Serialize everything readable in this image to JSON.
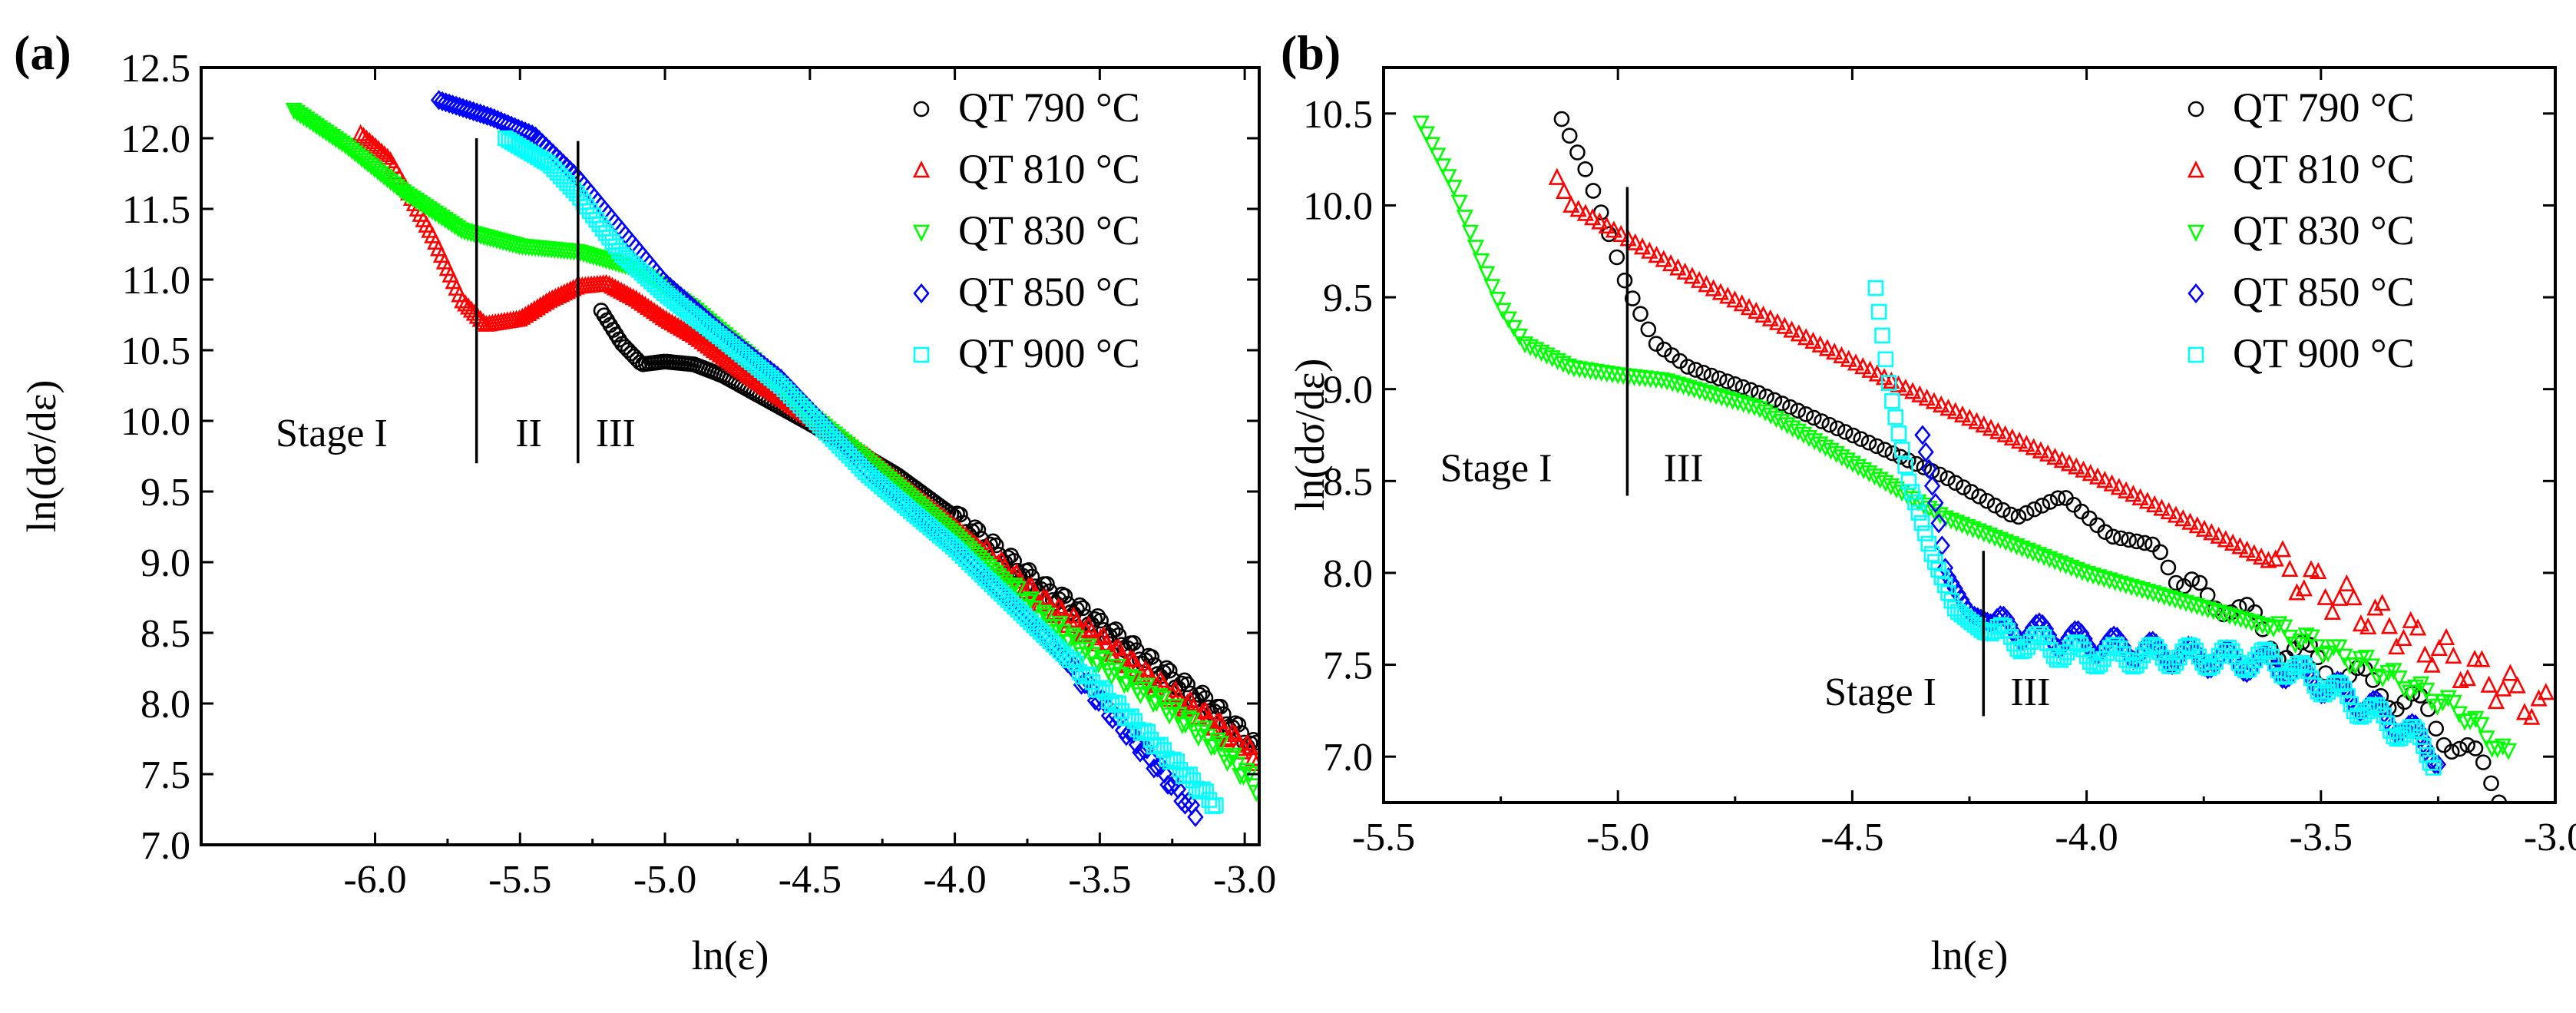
{
  "colors": {
    "QT790": "#000000",
    "QT810": "#ff0000",
    "QT830": "#00ff00",
    "QT850": "#0000ff",
    "QT900": "#00ffff"
  },
  "chart_data": [
    {
      "panel": "(a)",
      "type": "scatter",
      "title": "",
      "xlabel": "ln(ε)",
      "ylabel": "ln(dσ/dε)",
      "xlim": [
        -6.6,
        -2.95
      ],
      "ylim": [
        7.0,
        12.5
      ],
      "xticks": [
        -6.0,
        -5.5,
        -5.0,
        -4.5,
        -4.0,
        -3.5,
        -3.0
      ],
      "xtick_labels": [
        "-6.0",
        "-5.5",
        "-5.0",
        "-4.5",
        "-4.0",
        "-3.5",
        "-3.0"
      ],
      "yticks": [
        7.0,
        7.5,
        8.0,
        8.5,
        9.0,
        9.5,
        10.0,
        10.5,
        11.0,
        11.5,
        12.0,
        12.5
      ],
      "ytick_labels": [
        "7.0",
        "7.5",
        "8.0",
        "8.5",
        "9.0",
        "9.5",
        "10.0",
        "10.5",
        "11.0",
        "11.5",
        "12.0",
        "12.5"
      ],
      "legend": [
        {
          "label": "QT 790 °C",
          "marker": "circle",
          "color_key": "QT790"
        },
        {
          "label": "QT 810 °C",
          "marker": "triangle-up",
          "color_key": "QT810"
        },
        {
          "label": "QT 830 °C",
          "marker": "triangle-down",
          "color_key": "QT830"
        },
        {
          "label": "QT 850 °C",
          "marker": "diamond",
          "color_key": "QT850"
        },
        {
          "label": "QT 900 °C",
          "marker": "square",
          "color_key": "QT900"
        }
      ],
      "legend_position": "top-right",
      "series": [
        {
          "name": "QT 790 °C",
          "color_key": "QT790",
          "marker": "circle",
          "n": 220,
          "points": [
            [
              -5.22,
              10.78
            ],
            [
              -5.15,
              10.55
            ],
            [
              -5.08,
              10.4
            ],
            [
              -5.0,
              10.42
            ],
            [
              -4.9,
              10.4
            ],
            [
              -4.8,
              10.32
            ],
            [
              -4.5,
              9.98
            ],
            [
              -4.2,
              9.62
            ],
            [
              -4.0,
              9.32
            ],
            [
              -3.7,
              8.82
            ],
            [
              -3.5,
              8.56
            ],
            [
              -3.3,
              8.25
            ],
            [
              -3.1,
              7.96
            ],
            [
              -2.96,
              7.68
            ]
          ],
          "osc": {
            "start": -4.0,
            "amp": 0.05,
            "period": 0.06
          }
        },
        {
          "name": "QT 810 °C",
          "color_key": "QT810",
          "marker": "triangle-up",
          "n": 300,
          "points": [
            [
              -6.05,
              12.03
            ],
            [
              -5.95,
              11.85
            ],
            [
              -5.8,
              11.3
            ],
            [
              -5.7,
              10.85
            ],
            [
              -5.62,
              10.68
            ],
            [
              -5.5,
              10.72
            ],
            [
              -5.4,
              10.85
            ],
            [
              -5.3,
              10.95
            ],
            [
              -5.2,
              10.97
            ],
            [
              -5.1,
              10.86
            ],
            [
              -5.0,
              10.72
            ],
            [
              -4.9,
              10.6
            ],
            [
              -4.7,
              10.3
            ],
            [
              -4.5,
              10.02
            ],
            [
              -4.3,
              9.75
            ],
            [
              -4.0,
              9.25
            ],
            [
              -3.7,
              8.72
            ],
            [
              -3.5,
              8.45
            ],
            [
              -3.3,
              8.13
            ],
            [
              -3.1,
              7.85
            ],
            [
              -2.96,
              7.62
            ]
          ],
          "osc": {
            "start": -3.9,
            "amp": 0.05,
            "period": 0.05
          }
        },
        {
          "name": "QT 830 °C",
          "color_key": "QT830",
          "marker": "triangle-down",
          "n": 300,
          "points": [
            [
              -6.28,
              12.2
            ],
            [
              -6.1,
              11.95
            ],
            [
              -5.9,
              11.62
            ],
            [
              -5.7,
              11.35
            ],
            [
              -5.5,
              11.24
            ],
            [
              -5.3,
              11.2
            ],
            [
              -5.1,
              11.08
            ],
            [
              -4.9,
              10.8
            ],
            [
              -4.7,
              10.45
            ],
            [
              -4.5,
              10.05
            ],
            [
              -4.3,
              9.72
            ],
            [
              -4.0,
              9.2
            ],
            [
              -3.7,
              8.62
            ],
            [
              -3.5,
              8.3
            ],
            [
              -3.3,
              8.03
            ],
            [
              -3.1,
              7.72
            ],
            [
              -2.96,
              7.42
            ]
          ],
          "osc": {
            "start": -3.8,
            "amp": 0.05,
            "period": 0.05
          }
        },
        {
          "name": "QT 850 °C",
          "color_key": "QT850",
          "marker": "diamond",
          "n": 220,
          "points": [
            [
              -5.78,
              12.27
            ],
            [
              -5.6,
              12.15
            ],
            [
              -5.45,
              12.02
            ],
            [
              -5.3,
              11.72
            ],
            [
              -5.15,
              11.35
            ],
            [
              -5.0,
              10.98
            ],
            [
              -4.8,
              10.62
            ],
            [
              -4.6,
              10.3
            ],
            [
              -4.3,
              9.65
            ],
            [
              -4.0,
              9.1
            ],
            [
              -3.7,
              8.5
            ],
            [
              -3.5,
              8.02
            ],
            [
              -3.3,
              7.55
            ],
            [
              -3.17,
              7.22
            ]
          ],
          "osc": {
            "start": -3.6,
            "amp": 0.04,
            "period": 0.05
          }
        },
        {
          "name": "QT 900 °C",
          "color_key": "QT900",
          "marker": "square",
          "n": 220,
          "points": [
            [
              -5.55,
              12.0
            ],
            [
              -5.4,
              11.82
            ],
            [
              -5.3,
              11.6
            ],
            [
              -5.15,
              11.18
            ],
            [
              -5.0,
              10.9
            ],
            [
              -4.8,
              10.58
            ],
            [
              -4.6,
              10.25
            ],
            [
              -4.3,
              9.62
            ],
            [
              -4.0,
              9.1
            ],
            [
              -3.7,
              8.5
            ],
            [
              -3.5,
              8.1
            ],
            [
              -3.3,
              7.7
            ],
            [
              -3.1,
              7.28
            ]
          ],
          "osc": {
            "start": -3.6,
            "amp": 0.03,
            "period": 0.05
          }
        }
      ],
      "stage_lines": [
        {
          "x": -5.65,
          "y1": 9.7,
          "y2": 12.0
        },
        {
          "x": -5.3,
          "y1": 9.7,
          "y2": 11.98
        }
      ],
      "annotations": [
        {
          "text": "Stage I",
          "x": -6.15,
          "y": 9.82
        },
        {
          "text": "II",
          "x": -5.47,
          "y": 9.82
        },
        {
          "text": "III",
          "x": -5.17,
          "y": 9.82
        }
      ]
    },
    {
      "panel": "(b)",
      "type": "scatter",
      "title": "",
      "xlabel": "ln(ε)",
      "ylabel": "ln(dσ/dε)",
      "xlim": [
        -5.5,
        -3.0
      ],
      "ylim": [
        6.75,
        10.75
      ],
      "xticks": [
        -5.5,
        -5.0,
        -4.5,
        -4.0,
        -3.5,
        -3.0
      ],
      "xtick_labels": [
        "-5.5",
        "-5.0",
        "-4.5",
        "-4.0",
        "-3.5",
        "-3.0"
      ],
      "yticks": [
        7.0,
        7.5,
        8.0,
        8.5,
        9.0,
        9.5,
        10.0,
        10.5
      ],
      "ytick_labels": [
        "7.0",
        "7.5",
        "8.0",
        "8.5",
        "9.0",
        "9.5",
        "10.0",
        "10.5"
      ],
      "legend": [
        {
          "label": "QT 790 °C",
          "marker": "circle",
          "color_key": "QT790"
        },
        {
          "label": "QT 810 °C",
          "marker": "triangle-up",
          "color_key": "QT810"
        },
        {
          "label": "QT 830 °C",
          "marker": "triangle-down",
          "color_key": "QT830"
        },
        {
          "label": "QT 850 °C",
          "marker": "diamond",
          "color_key": "QT850"
        },
        {
          "label": "QT 900 °C",
          "marker": "square",
          "color_key": "QT900"
        }
      ],
      "legend_position": "top-right",
      "series": [
        {
          "name": "QT 790 °C",
          "color_key": "QT790",
          "marker": "circle",
          "n": 120,
          "points": [
            [
              -5.12,
              10.47
            ],
            [
              -5.07,
              10.2
            ],
            [
              -5.02,
              9.85
            ],
            [
              -4.98,
              9.55
            ],
            [
              -4.92,
              9.25
            ],
            [
              -4.85,
              9.12
            ],
            [
              -4.7,
              8.98
            ],
            [
              -4.5,
              8.75
            ],
            [
              -4.3,
              8.52
            ],
            [
              -4.15,
              8.3
            ],
            [
              -4.05,
              8.42
            ],
            [
              -3.95,
              8.2
            ],
            [
              -3.85,
              8.15
            ],
            [
              -3.8,
              7.9
            ],
            [
              -3.7,
              7.85
            ],
            [
              -3.6,
              7.62
            ],
            [
              -3.45,
              7.45
            ],
            [
              -3.3,
              7.28
            ],
            [
              -3.2,
              7.05
            ],
            [
              -3.12,
              6.82
            ]
          ],
          "osc": {
            "start": -3.8,
            "amp": 0.08,
            "period": 0.12
          }
        },
        {
          "name": "QT 810 °C",
          "color_key": "QT810",
          "marker": "triangle-up",
          "n": 140,
          "points": [
            [
              -5.13,
              10.15
            ],
            [
              -5.1,
              10.0
            ],
            [
              -5.0,
              9.85
            ],
            [
              -4.8,
              9.55
            ],
            [
              -4.6,
              9.28
            ],
            [
              -4.4,
              9.02
            ],
            [
              -4.2,
              8.78
            ],
            [
              -4.0,
              8.55
            ],
            [
              -3.8,
              8.3
            ],
            [
              -3.6,
              8.05
            ],
            [
              -3.4,
              7.78
            ],
            [
              -3.2,
              7.5
            ],
            [
              -3.02,
              7.25
            ]
          ],
          "osc": {
            "start": -3.6,
            "amp": 0.1,
            "period": 0.07
          }
        },
        {
          "name": "QT 830 °C",
          "color_key": "QT830",
          "marker": "triangle-down",
          "n": 200,
          "points": [
            [
              -5.42,
              10.45
            ],
            [
              -5.35,
              10.1
            ],
            [
              -5.3,
              9.75
            ],
            [
              -5.25,
              9.45
            ],
            [
              -5.2,
              9.25
            ],
            [
              -5.1,
              9.12
            ],
            [
              -5.0,
              9.08
            ],
            [
              -4.9,
              9.05
            ],
            [
              -4.7,
              8.9
            ],
            [
              -4.5,
              8.6
            ],
            [
              -4.3,
              8.3
            ],
            [
              -4.0,
              8.0
            ],
            [
              -3.8,
              7.85
            ],
            [
              -3.6,
              7.7
            ],
            [
              -3.4,
              7.5
            ],
            [
              -3.2,
              7.25
            ],
            [
              -3.1,
              7.0
            ]
          ],
          "osc": {
            "start": -3.6,
            "amp": 0.04,
            "period": 0.06
          }
        },
        {
          "name": "QT 850 °C",
          "color_key": "QT850",
          "marker": "diamond",
          "n": 160,
          "points": [
            [
              -4.35,
              8.75
            ],
            [
              -4.32,
              8.35
            ],
            [
              -4.3,
              8.0
            ],
            [
              -4.25,
              7.78
            ],
            [
              -4.2,
              7.72
            ],
            [
              -4.0,
              7.62
            ],
            [
              -3.8,
              7.55
            ],
            [
              -3.6,
              7.5
            ],
            [
              -3.5,
              7.4
            ],
            [
              -3.4,
              7.28
            ],
            [
              -3.3,
              7.12
            ],
            [
              -3.25,
              7.0
            ]
          ],
          "osc": {
            "start": -4.2,
            "amp": 0.06,
            "period": 0.08
          }
        },
        {
          "name": "QT 900 °C",
          "color_key": "QT900",
          "marker": "square",
          "n": 170,
          "points": [
            [
              -4.45,
              9.55
            ],
            [
              -4.42,
              9.0
            ],
            [
              -4.38,
              8.5
            ],
            [
              -4.33,
              8.1
            ],
            [
              -4.28,
              7.8
            ],
            [
              -4.22,
              7.68
            ],
            [
              -4.0,
              7.55
            ],
            [
              -3.8,
              7.55
            ],
            [
              -3.6,
              7.52
            ],
            [
              -3.5,
              7.4
            ],
            [
              -3.4,
              7.25
            ],
            [
              -3.3,
              7.1
            ],
            [
              -3.26,
              7.0
            ]
          ],
          "osc": {
            "start": -4.2,
            "amp": 0.06,
            "period": 0.08
          }
        }
      ],
      "stage_lines": [
        {
          "x": -4.98,
          "y1": 8.42,
          "y2": 10.1
        },
        {
          "x": -4.22,
          "y1": 7.22,
          "y2": 8.12
        }
      ],
      "annotations": [
        {
          "text": "Stage I",
          "x": -5.26,
          "y": 8.5
        },
        {
          "text": "III",
          "x": -4.86,
          "y": 8.5
        },
        {
          "text": "Stage I",
          "x": -4.44,
          "y": 7.28
        },
        {
          "text": "III",
          "x": -4.12,
          "y": 7.28
        }
      ]
    }
  ]
}
